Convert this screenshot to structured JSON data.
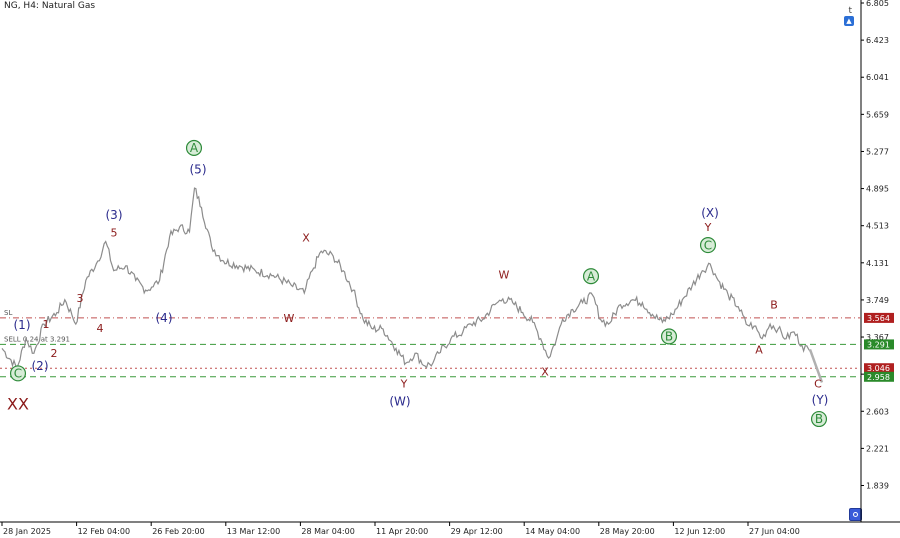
{
  "header": {
    "symbol_label": "NG, H4:  Natural Gas",
    "corner_label": "t"
  },
  "colors": {
    "price_line": "#8c8c8c",
    "sl_line": "#c05050",
    "entry_line": "#3a9a3a",
    "red_tag": "#b02020",
    "green_tag": "#2a8a2a",
    "navy": "#2a2a8c",
    "maroon": "#8b1a1a",
    "green": "#2e8b3a"
  },
  "chart_data": {
    "type": "line",
    "title": "NG, H4: Natural Gas",
    "xlabel": "",
    "ylabel": "",
    "ylim": [
      1.45,
      6.805
    ],
    "y_ticks": [
      6.805,
      6.423,
      6.041,
      5.659,
      5.277,
      4.895,
      4.513,
      4.131,
      3.749,
      3.367,
      2.985,
      2.603,
      2.221,
      1.839
    ],
    "x_ticks": [
      {
        "label": "28 Jan 2025",
        "x": 0
      },
      {
        "label": "12 Feb 04:00",
        "x": 84
      },
      {
        "label": "26 Feb 20:00",
        "x": 172
      },
      {
        "label": "13 Mar 12:00",
        "x": 260
      },
      {
        "label": "28 Mar 04:00",
        "x": 348
      },
      {
        "label": "11 Apr 20:00",
        "x": 436
      },
      {
        "label": "29 Apr 12:00",
        "x": 524
      },
      {
        "label": "14 May 04:00",
        "x": 612
      },
      {
        "label": "28 May 20:00",
        "x": 700
      },
      {
        "label": "12 Jun 12:00",
        "x": 788
      },
      {
        "label": "27 Jun 04:00",
        "x": 876
      }
    ],
    "x_range": [
      0,
      1000
    ],
    "series": [
      {
        "values": [
          [
            0,
            3.25
          ],
          [
            15,
            3.05
          ],
          [
            24,
            3.35
          ],
          [
            32,
            3.2
          ],
          [
            42,
            3.5
          ],
          [
            55,
            3.62
          ],
          [
            63,
            3.75
          ],
          [
            70,
            3.6
          ],
          [
            74,
            3.5
          ],
          [
            84,
            3.95
          ],
          [
            96,
            4.15
          ],
          [
            104,
            4.35
          ],
          [
            112,
            4.05
          ],
          [
            124,
            4.1
          ],
          [
            134,
            3.95
          ],
          [
            144,
            3.85
          ],
          [
            150,
            3.88
          ],
          [
            158,
            3.95
          ],
          [
            168,
            4.4
          ],
          [
            178,
            4.5
          ],
          [
            188,
            4.45
          ],
          [
            193,
            4.9
          ],
          [
            200,
            4.7
          ],
          [
            210,
            4.3
          ],
          [
            222,
            4.15
          ],
          [
            238,
            4.1
          ],
          [
            254,
            4.05
          ],
          [
            272,
            4.0
          ],
          [
            290,
            3.9
          ],
          [
            303,
            3.82
          ],
          [
            311,
            4.05
          ],
          [
            320,
            4.25
          ],
          [
            332,
            4.2
          ],
          [
            342,
            4.05
          ],
          [
            352,
            3.85
          ],
          [
            362,
            3.55
          ],
          [
            372,
            3.45
          ],
          [
            382,
            3.45
          ],
          [
            395,
            3.25
          ],
          [
            405,
            3.1
          ],
          [
            414,
            3.2
          ],
          [
            424,
            3.07
          ],
          [
            432,
            3.1
          ],
          [
            438,
            3.2
          ],
          [
            450,
            3.35
          ],
          [
            462,
            3.42
          ],
          [
            470,
            3.5
          ],
          [
            482,
            3.55
          ],
          [
            494,
            3.7
          ],
          [
            502,
            3.76
          ],
          [
            512,
            3.72
          ],
          [
            522,
            3.62
          ],
          [
            532,
            3.52
          ],
          [
            540,
            3.35
          ],
          [
            548,
            3.15
          ],
          [
            556,
            3.35
          ],
          [
            562,
            3.55
          ],
          [
            572,
            3.65
          ],
          [
            582,
            3.72
          ],
          [
            592,
            3.8
          ],
          [
            600,
            3.55
          ],
          [
            608,
            3.5
          ],
          [
            620,
            3.7
          ],
          [
            632,
            3.75
          ],
          [
            642,
            3.72
          ],
          [
            652,
            3.6
          ],
          [
            662,
            3.52
          ],
          [
            672,
            3.6
          ],
          [
            682,
            3.75
          ],
          [
            692,
            3.9
          ],
          [
            702,
            4.05
          ],
          [
            710,
            4.12
          ],
          [
            718,
            3.95
          ],
          [
            728,
            3.8
          ],
          [
            738,
            3.68
          ],
          [
            746,
            3.5
          ],
          [
            754,
            3.48
          ],
          [
            762,
            3.35
          ],
          [
            770,
            3.5
          ],
          [
            778,
            3.45
          ],
          [
            786,
            3.35
          ],
          [
            794,
            3.42
          ],
          [
            802,
            3.28
          ],
          [
            810,
            3.22
          ]
        ]
      }
    ],
    "projection": [
      [
        810,
        3.24
      ],
      [
        822,
        2.9
      ]
    ],
    "horizontal_lines": [
      {
        "name": "SL",
        "value": 3.564,
        "style": "dashdot",
        "color": "#c05050",
        "label_left": "SL"
      },
      {
        "name": "SELL",
        "value": 3.291,
        "style": "dashed",
        "color": "#3a9a3a",
        "label_left": "SELL 0.24 at 3.291"
      },
      {
        "name": "red-3046",
        "value": 3.046,
        "style": "dotted",
        "color": "#c05050",
        "label_left": ""
      },
      {
        "name": "green-2958",
        "value": 2.958,
        "style": "dashed",
        "color": "#3a9a3a",
        "label_left": ""
      }
    ],
    "price_tags": [
      {
        "text": "3.564",
        "value": 3.564,
        "bg": "#b02020"
      },
      {
        "text": "3.291",
        "value": 3.291,
        "bg": "#2a8a2a"
      },
      {
        "text": "3.046",
        "value": 3.046,
        "bg": "#b02020"
      },
      {
        "text": "2.958",
        "value": 2.958,
        "bg": "#2a8a2a"
      }
    ],
    "wave_labels": [
      {
        "text": "XX",
        "x": 18,
        "y": 2.62,
        "color": "maroon",
        "size": 16
      },
      {
        "text": "C",
        "x": 18,
        "y": 2.95,
        "color": "green",
        "size": 12,
        "circled": true
      },
      {
        "text": "(1)",
        "x": 22,
        "y": 3.45,
        "color": "navy",
        "size": 12
      },
      {
        "text": "(2)",
        "x": 40,
        "y": 3.03,
        "color": "navy",
        "size": 12
      },
      {
        "text": "1",
        "x": 46,
        "y": 3.46,
        "color": "maroon",
        "size": 11
      },
      {
        "text": "2",
        "x": 54,
        "y": 3.16,
        "color": "maroon",
        "size": 11
      },
      {
        "text": "3",
        "x": 80,
        "y": 3.73,
        "color": "maroon",
        "size": 11
      },
      {
        "text": "4",
        "x": 100,
        "y": 3.42,
        "color": "maroon",
        "size": 11
      },
      {
        "text": "(3)",
        "x": 114,
        "y": 4.58,
        "color": "navy",
        "size": 12
      },
      {
        "text": "5",
        "x": 114,
        "y": 4.4,
        "color": "maroon",
        "size": 11
      },
      {
        "text": "(4)",
        "x": 164,
        "y": 3.52,
        "color": "navy",
        "size": 12
      },
      {
        "text": "A",
        "x": 194,
        "y": 5.27,
        "color": "green",
        "size": 12,
        "circled": true
      },
      {
        "text": "(5)",
        "x": 198,
        "y": 5.05,
        "color": "navy",
        "size": 12
      },
      {
        "text": "X",
        "x": 306,
        "y": 4.35,
        "color": "maroon",
        "size": 11
      },
      {
        "text": "W",
        "x": 289,
        "y": 3.52,
        "color": "maroon",
        "size": 11
      },
      {
        "text": "Y",
        "x": 404,
        "y": 2.85,
        "color": "maroon",
        "size": 11
      },
      {
        "text": "(W)",
        "x": 400,
        "y": 2.66,
        "color": "navy",
        "size": 12
      },
      {
        "text": "W",
        "x": 504,
        "y": 3.97,
        "color": "maroon",
        "size": 11
      },
      {
        "text": "X",
        "x": 545,
        "y": 2.97,
        "color": "maroon",
        "size": 11
      },
      {
        "text": "A",
        "x": 591,
        "y": 3.95,
        "color": "green",
        "size": 12,
        "circled": true
      },
      {
        "text": "B",
        "x": 669,
        "y": 3.33,
        "color": "green",
        "size": 12,
        "circled": true
      },
      {
        "text": "(X)",
        "x": 710,
        "y": 4.6,
        "color": "navy",
        "size": 12
      },
      {
        "text": "Y",
        "x": 708,
        "y": 4.46,
        "color": "maroon",
        "size": 11
      },
      {
        "text": "C",
        "x": 708,
        "y": 4.27,
        "color": "green",
        "size": 12,
        "circled": true
      },
      {
        "text": "B",
        "x": 774,
        "y": 3.66,
        "color": "maroon",
        "size": 11
      },
      {
        "text": "A",
        "x": 759,
        "y": 3.2,
        "color": "maroon",
        "size": 11
      },
      {
        "text": "C",
        "x": 818,
        "y": 2.85,
        "color": "maroon",
        "size": 11
      },
      {
        "text": "(Y)",
        "x": 820,
        "y": 2.68,
        "color": "navy",
        "size": 12
      },
      {
        "text": "B",
        "x": 819,
        "y": 2.48,
        "color": "green",
        "size": 12,
        "circled": true
      }
    ],
    "grid": false,
    "legend": "none"
  }
}
